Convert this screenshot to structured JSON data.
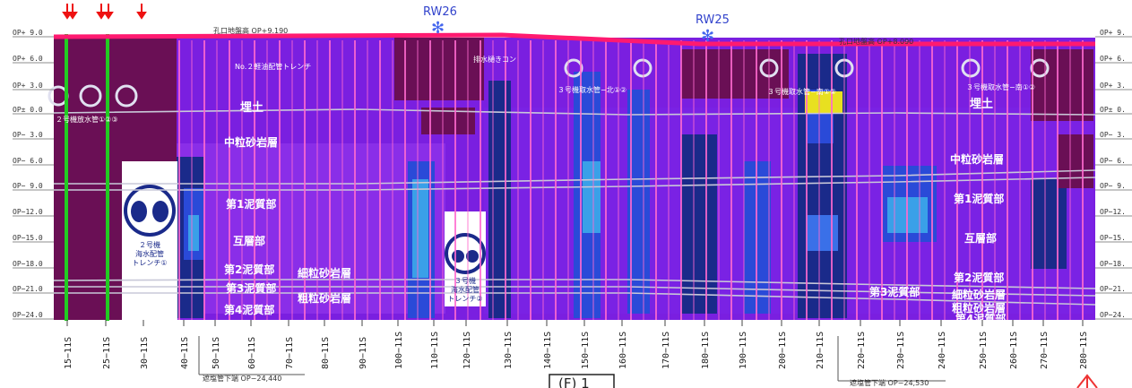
{
  "elevation_levels": [
    "OP+ 9.0",
    "OP+ 6.0",
    "OP+ 3.0",
    "OP± 0.0",
    "OP− 3.0",
    "OP− 6.0",
    "OP− 9.0",
    "OP−12.0",
    "OP−15.0",
    "OP−18.0",
    "OP−21.0",
    "OP−24.0"
  ],
  "elevation_levels_right": [
    "OP+ 9.",
    "OP+ 6.",
    "OP+ 3.",
    "OP± 0.",
    "OP− 3.",
    "OP− 6.",
    "OP− 9.",
    "OP−12.",
    "OP−15.",
    "OP−18.",
    "OP−21.",
    "OP−24."
  ],
  "stations": [
    "15−11S",
    "25−11S",
    "30−11S",
    "40−11S",
    "50−11S",
    "60−11S",
    "70−11S",
    "80−11S",
    "90−11S",
    "100−11S",
    "110−11S",
    "120−11S",
    "130−11S",
    "140−11S",
    "150−11S",
    "160−11S",
    "170−11S",
    "180−11S",
    "190−11S",
    "200−11S",
    "210−11S",
    "220−11S",
    "230−11S",
    "240−11S",
    "250−11S",
    "260−11S",
    "270−11S",
    "280−11S"
  ],
  "wells": [
    {
      "name": "RW26"
    },
    {
      "name": "RW25"
    }
  ],
  "ground_notes": {
    "left": "孔口地盤高 OP+9.190",
    "right": "孔口地盤高 OP+8.090"
  },
  "labels": {
    "fill": "埋土",
    "fill_right": "埋土",
    "mid_sandstone": "中粒砂岩層",
    "mid_sandstone_right": "中粒砂岩層",
    "mud1": "第1泥質部",
    "mud1_right": "第1泥質部",
    "alternating": "互層部",
    "alternating_right": "互層部",
    "mud2": "第2泥質部",
    "mud2_right": "第2泥質部",
    "mud3": "第3泥質部",
    "mud3_right": "第3泥質部",
    "mud4": "第4泥質部",
    "mud4_right": "第4泥質部",
    "fine_sandstone": "細粒砂岩層",
    "fine_sandstone_right": "細粒砂岩層",
    "coarse_sandstone": "粗粒砂岩層",
    "coarse_sandstone_right": "粗粒砂岩層",
    "discharge_pipe": "２号機放水管①②③",
    "no2_trench": "No.２軽油配管トレンチ",
    "drain_culvert": "排水樋きコン",
    "intake_north": "３号機取水管−北①②",
    "intake_mid": "３号機取水管−南①②",
    "intake_south": "３号機取水管−南①②"
  },
  "trench_2": {
    "line1": "２号機",
    "line2": "海水配管",
    "line3": "トレンチ①"
  },
  "trench_3": {
    "line1": "３号機",
    "line2": "海水配管",
    "line3": "トレンチ②"
  },
  "bottom_notes": {
    "left": "遮塩管下端 OP−24,440",
    "right": "遮塩管下端 OP−24,530"
  },
  "figure_label": "(F) 1",
  "colors": {
    "purple": "#7a1fe0",
    "violet": "#9a3cf0",
    "maroon": "#6a0f55",
    "navy": "#1a2a8a",
    "blue": "#2a4ad8",
    "lightblue": "#3aa0e8",
    "yellow": "#e8e020",
    "magenta": "#ff3ca0",
    "green": "#22cc22"
  }
}
